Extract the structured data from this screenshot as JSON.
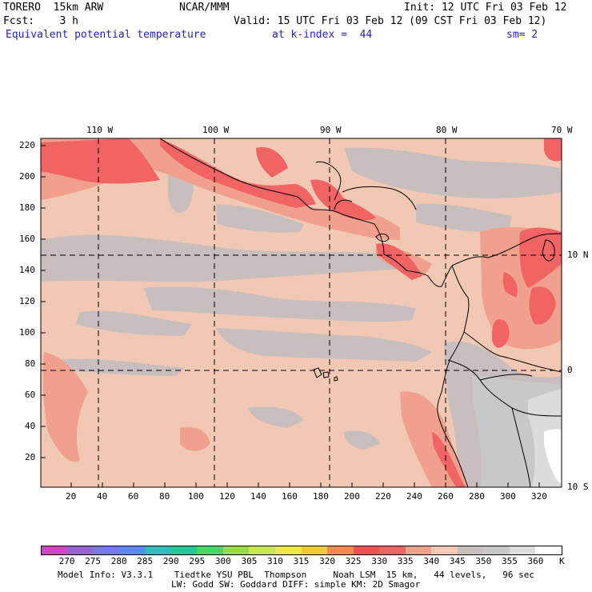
{
  "header": {
    "model": "TORERO  15km ARW",
    "org": "NCAR/MMM",
    "init": "Init: 12 UTC Fri 03 Feb 12",
    "fcst": "Fcst:    3 h",
    "valid": "Valid: 15 UTC Fri 03 Feb 12 (09 CST Fri 03 Feb 12)",
    "field": "Equivalent potential temperature",
    "level": "at k-index =  44",
    "smooth": "sm= 2"
  },
  "map": {
    "top_lon_labels": [
      "110 W",
      "100 W",
      "90 W",
      "80 W",
      "70 W"
    ],
    "right_lat_labels": [
      "10 N",
      "0",
      "10 S"
    ],
    "y_ticks": [
      "220",
      "200",
      "180",
      "160",
      "140",
      "120",
      "100",
      "80",
      "60",
      "40",
      "20"
    ],
    "x_ticks": [
      "20",
      "40",
      "60",
      "80",
      "100",
      "120",
      "140",
      "160",
      "180",
      "200",
      "220",
      "240",
      "260",
      "280",
      "300",
      "320"
    ]
  },
  "colorbar": {
    "unit": "K",
    "labels": [
      "270",
      "275",
      "280",
      "285",
      "290",
      "295",
      "300",
      "305",
      "310",
      "315",
      "320",
      "325",
      "330",
      "335",
      "340",
      "345",
      "350",
      "355",
      "360"
    ],
    "colors": [
      "#c848c8",
      "#9664d2",
      "#7878e6",
      "#5a8ce6",
      "#2ebcbc",
      "#28c896",
      "#50d264",
      "#96dc50",
      "#c8e650",
      "#f0e650",
      "#f0c83c",
      "#f08c50",
      "#f05050",
      "#f06464",
      "#f0a08c",
      "#f0c8b4",
      "#c8bebe",
      "#c8c8c8",
      "#dcdcdc",
      "#ffffff"
    ]
  },
  "footer": {
    "line1": "Model Info: V3.3.1    Tiedtke YSU PBL  Thompson     Noah LSM  15 km,   44 levels,   96 sec",
    "line2": "LW: Godd SW: Goddard DIFF: simple KM: 2D Smagor"
  }
}
